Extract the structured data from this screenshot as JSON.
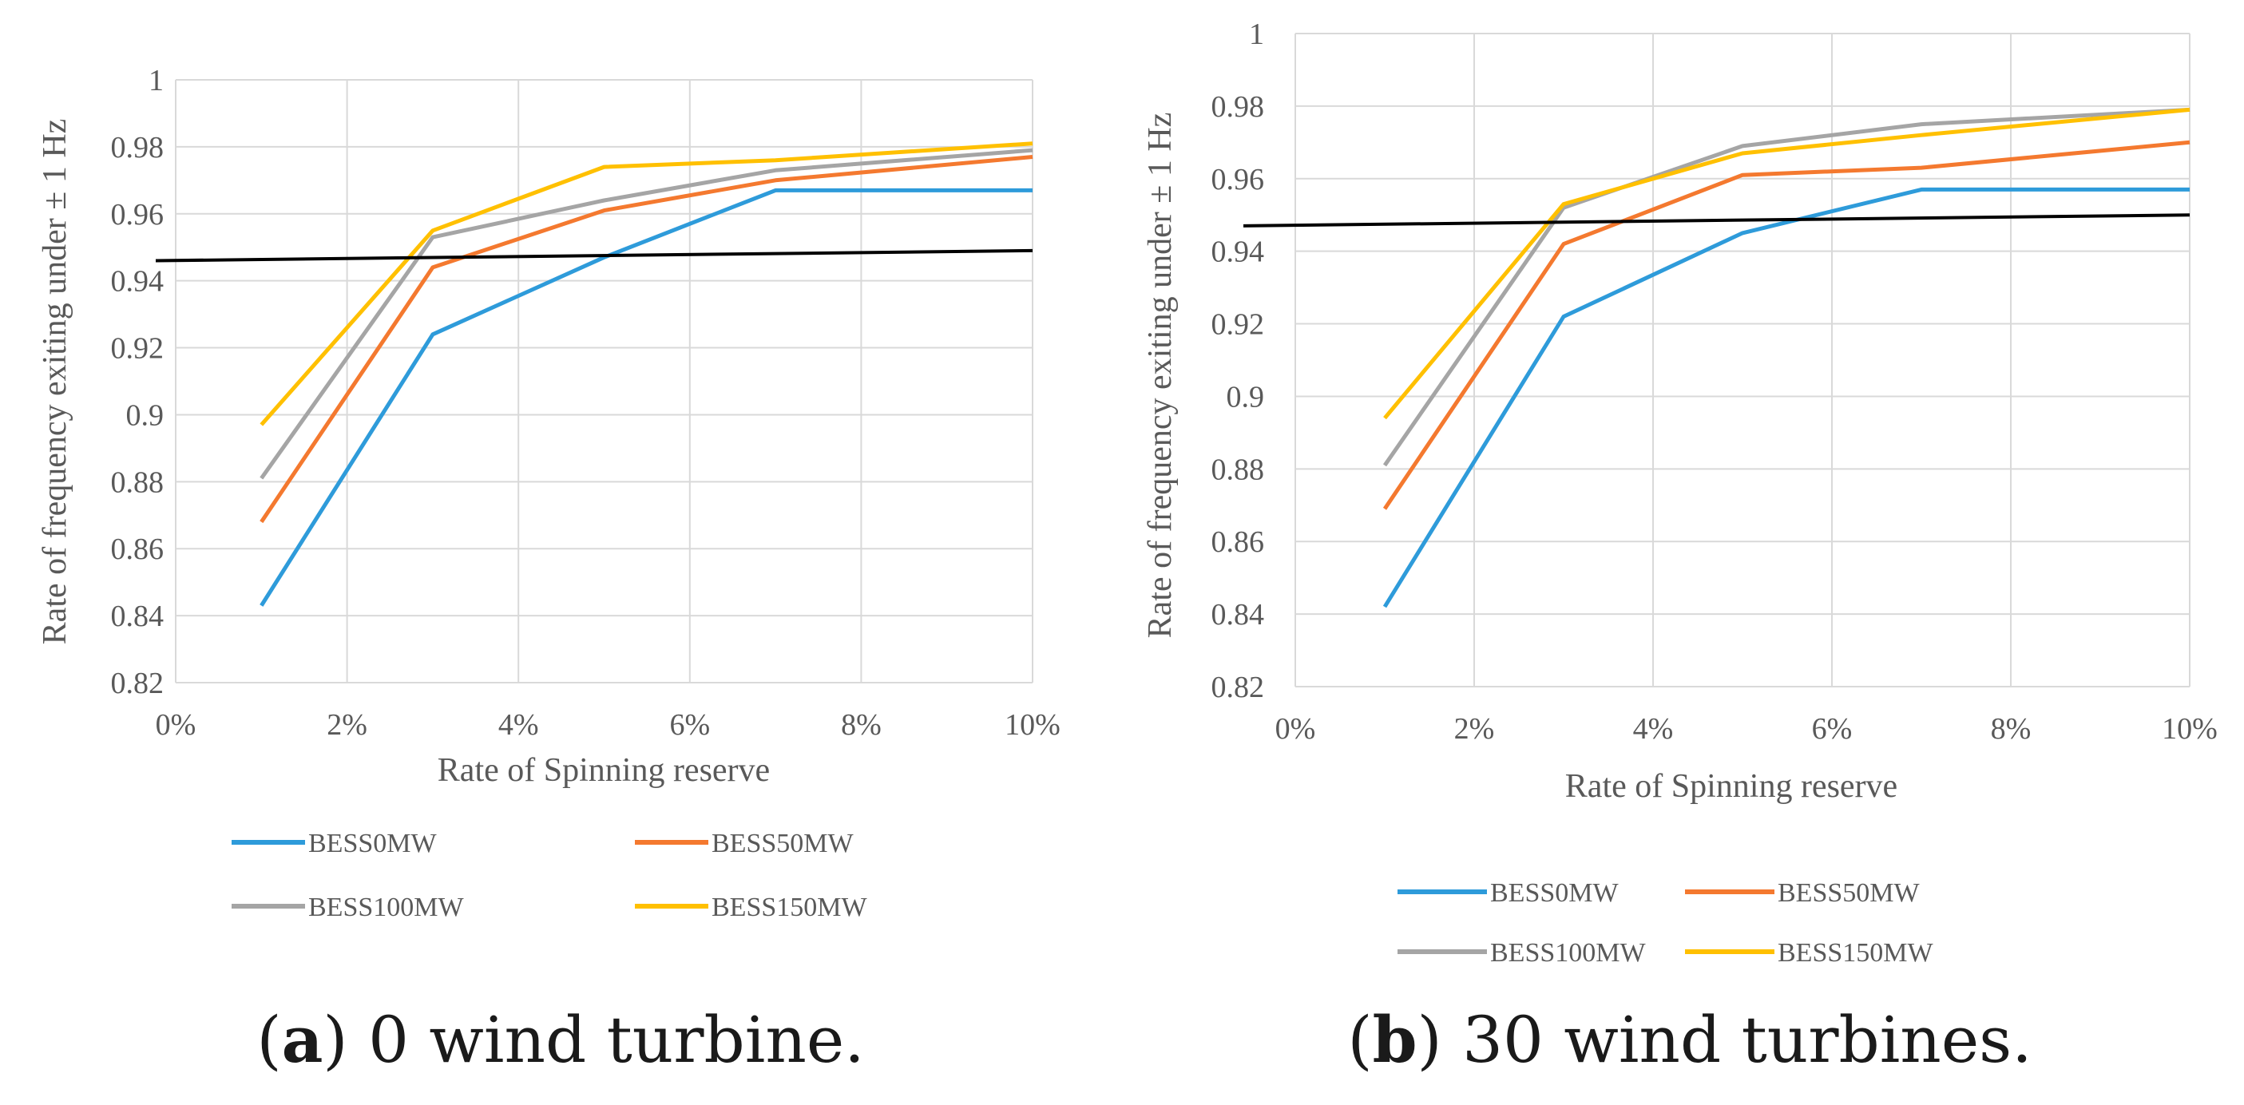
{
  "chart_data": [
    {
      "type": "line",
      "panel": "a",
      "caption_letter": "a",
      "caption_rest": ") 0 wind turbine.",
      "caption_open": "(",
      "xlabel": "Rate of Spinning reserve",
      "ylabel": "Rate of frequency exiting under ± 1 Hz",
      "x_ticks": [
        "0%",
        "2%",
        "4%",
        "6%",
        "8%",
        "10%"
      ],
      "xlim": [
        0,
        10
      ],
      "y_ticks": [
        "0.82",
        "0.84",
        "0.86",
        "0.88",
        "0.9",
        "0.92",
        "0.94",
        "0.96",
        "0.98",
        "1"
      ],
      "ylim": [
        0.82,
        1.0
      ],
      "x": [
        1,
        3,
        5,
        7,
        10
      ],
      "series": [
        {
          "name": "BESS0MW",
          "color": "#2E9BDA",
          "values": [
            0.843,
            0.924,
            0.947,
            0.967,
            0.967
          ]
        },
        {
          "name": "BESS50MW",
          "color": "#F4792F",
          "values": [
            0.868,
            0.944,
            0.961,
            0.97,
            0.977
          ]
        },
        {
          "name": "BESS100MW",
          "color": "#A5A5A5",
          "values": [
            0.881,
            0.953,
            0.964,
            0.973,
            0.979
          ]
        },
        {
          "name": "BESS150MW",
          "color": "#FFC000",
          "values": [
            0.897,
            0.955,
            0.974,
            0.976,
            0.981
          ]
        }
      ],
      "reference_line": {
        "color": "#000000",
        "x": [
          0,
          10
        ],
        "y": [
          0.946,
          0.949
        ]
      }
    },
    {
      "type": "line",
      "panel": "b",
      "caption_letter": "b",
      "caption_rest": ") 30 wind turbines.",
      "caption_open": "(",
      "xlabel": "Rate of Spinning reserve",
      "ylabel": "Rate of frequency exiting under ± 1 Hz",
      "x_ticks": [
        "0%",
        "2%",
        "4%",
        "6%",
        "8%",
        "10%"
      ],
      "xlim": [
        0,
        10
      ],
      "y_ticks": [
        "0.82",
        "0.84",
        "0.86",
        "0.88",
        "0.9",
        "0.92",
        "0.94",
        "0.96",
        "0.98",
        "1"
      ],
      "ylim": [
        0.82,
        1.0
      ],
      "x": [
        1,
        3,
        5,
        7,
        10
      ],
      "series": [
        {
          "name": "BESS0MW",
          "color": "#2E9BDA",
          "values": [
            0.842,
            0.922,
            0.945,
            0.957,
            0.957
          ]
        },
        {
          "name": "BESS50MW",
          "color": "#F4792F",
          "values": [
            0.869,
            0.942,
            0.961,
            0.963,
            0.97
          ]
        },
        {
          "name": "BESS100MW",
          "color": "#A5A5A5",
          "values": [
            0.881,
            0.952,
            0.969,
            0.975,
            0.979
          ]
        },
        {
          "name": "BESS150MW",
          "color": "#FFC000",
          "values": [
            0.894,
            0.953,
            0.967,
            0.972,
            0.979
          ]
        }
      ],
      "reference_line": {
        "color": "#000000",
        "x": [
          0,
          10
        ],
        "y": [
          0.947,
          0.95
        ]
      }
    }
  ]
}
